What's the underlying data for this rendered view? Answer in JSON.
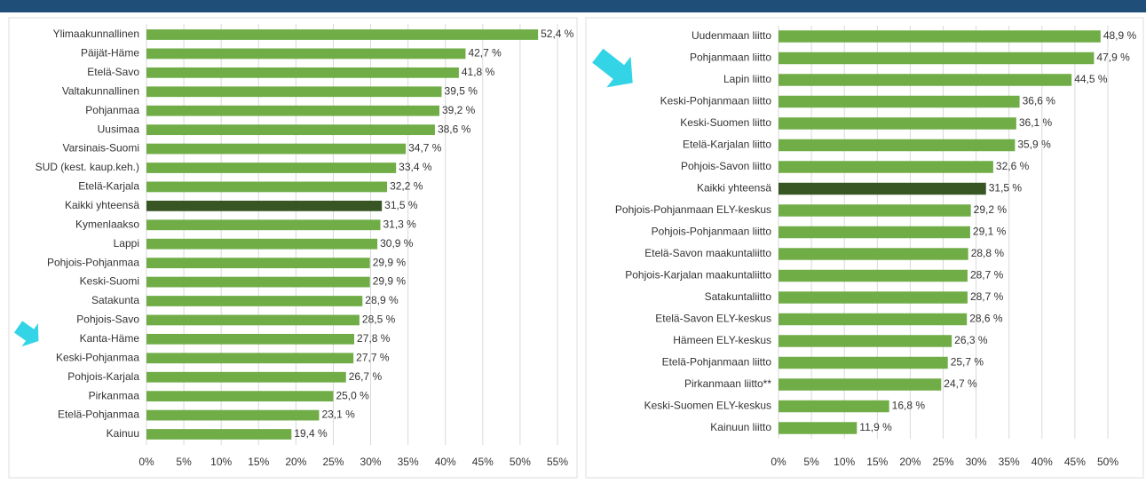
{
  "chart_data": [
    {
      "type": "bar",
      "orientation": "horizontal",
      "categories": [
        "Ylimaakunnallinen",
        "Päijät-Häme",
        "Etelä-Savo",
        "Valtakunnallinen",
        "Pohjanmaa",
        "Uusimaa",
        "Varsinais-Suomi",
        "SUD (kest. kaup.keh.)",
        "Etelä-Karjala",
        "Kaikki yhteensä",
        "Kymenlaakso",
        "Lappi",
        "Pohjois-Pohjanmaa",
        "Keski-Suomi",
        "Satakunta",
        "Pohjois-Savo",
        "Kanta-Häme",
        "Keski-Pohjanmaa",
        "Pohjois-Karjala",
        "Pirkanmaa",
        "Etelä-Pohjanmaa",
        "Kainuu"
      ],
      "values": [
        52.4,
        42.7,
        41.8,
        39.5,
        39.2,
        38.6,
        34.7,
        33.4,
        32.2,
        31.5,
        31.3,
        30.9,
        29.9,
        29.9,
        28.9,
        28.5,
        27.8,
        27.7,
        26.7,
        25.0,
        23.1,
        19.4
      ],
      "value_labels": [
        "52,4 %",
        "42,7 %",
        "41,8 %",
        "39,5 %",
        "39,2 %",
        "38,6 %",
        "34,7 %",
        "33,4 %",
        "32,2 %",
        "31,5 %",
        "31,3 %",
        "30,9 %",
        "29,9 %",
        "29,9 %",
        "28,9 %",
        "28,5 %",
        "27,8 %",
        "27,7 %",
        "26,7 %",
        "25,0 %",
        "23,1 %",
        "19,4 %"
      ],
      "colors": [
        "#70ad47",
        "#70ad47",
        "#70ad47",
        "#70ad47",
        "#70ad47",
        "#70ad47",
        "#70ad47",
        "#70ad47",
        "#70ad47",
        "#375623",
        "#70ad47",
        "#70ad47",
        "#70ad47",
        "#70ad47",
        "#70ad47",
        "#70ad47",
        "#70ad47",
        "#70ad47",
        "#70ad47",
        "#70ad47",
        "#70ad47",
        "#70ad47"
      ],
      "xlim": [
        0,
        55
      ],
      "xticks": [
        {
          "value": 0,
          "label": "0%"
        },
        {
          "value": 5,
          "label": "5%"
        },
        {
          "value": 10,
          "label": "10%"
        },
        {
          "value": 15,
          "label": "15%"
        },
        {
          "value": 20,
          "label": "20%"
        },
        {
          "value": 25,
          "label": "25%"
        },
        {
          "value": 30,
          "label": "30%"
        },
        {
          "value": 35,
          "label": "35%"
        },
        {
          "value": 40,
          "label": "40%"
        },
        {
          "value": 45,
          "label": "45%"
        },
        {
          "value": 50,
          "label": "50%"
        },
        {
          "value": 55,
          "label": "55%"
        }
      ],
      "grid": true
    },
    {
      "type": "bar",
      "orientation": "horizontal",
      "categories": [
        "Uudenmaan liitto",
        "Pohjanmaan liitto",
        "Lapin liitto",
        "Keski-Pohjanmaan liitto",
        "Keski-Suomen liitto",
        "Etelä-Karjalan liitto",
        "Pohjois-Savon liitto",
        "Kaikki yhteensä",
        "Pohjois-Pohjanmaan ELY-keskus",
        "Pohjois-Pohjanmaan liitto",
        "Etelä-Savon maakuntaliitto",
        "Pohjois-Karjalan maakuntaliitto",
        "Satakuntaliitto",
        "Etelä-Savon ELY-keskus",
        "Hämeen ELY-keskus",
        "Etelä-Pohjanmaan liitto",
        "Pirkanmaan liitto**",
        "Keski-Suomen ELY-keskus",
        "Kainuun liitto"
      ],
      "values": [
        48.9,
        47.9,
        44.5,
        36.6,
        36.1,
        35.9,
        32.6,
        31.5,
        29.2,
        29.1,
        28.8,
        28.7,
        28.7,
        28.6,
        26.3,
        25.7,
        24.7,
        16.8,
        11.9
      ],
      "value_labels": [
        "48,9 %",
        "47,9 %",
        "44,5 %",
        "36,6 %",
        "36,1 %",
        "35,9 %",
        "32,6 %",
        "31,5 %",
        "29,2 %",
        "29,1 %",
        "28,8 %",
        "28,7 %",
        "28,7 %",
        "28,6 %",
        "26,3 %",
        "25,7 %",
        "24,7 %",
        "16,8 %",
        "11,9 %"
      ],
      "colors": [
        "#70ad47",
        "#70ad47",
        "#70ad47",
        "#70ad47",
        "#70ad47",
        "#70ad47",
        "#70ad47",
        "#375623",
        "#70ad47",
        "#70ad47",
        "#70ad47",
        "#70ad47",
        "#70ad47",
        "#70ad47",
        "#70ad47",
        "#70ad47",
        "#70ad47",
        "#70ad47",
        "#70ad47"
      ],
      "xlim": [
        0,
        50
      ],
      "xticks": [
        {
          "value": 0,
          "label": "0%"
        },
        {
          "value": 5,
          "label": "5%"
        },
        {
          "value": 10,
          "label": "10%"
        },
        {
          "value": 15,
          "label": "15%"
        },
        {
          "value": 20,
          "label": "20%"
        },
        {
          "value": 25,
          "label": "25%"
        },
        {
          "value": 30,
          "label": "30%"
        },
        {
          "value": 35,
          "label": "35%"
        },
        {
          "value": 40,
          "label": "40%"
        },
        {
          "value": 45,
          "label": "45%"
        },
        {
          "value": 50,
          "label": "50%"
        }
      ],
      "grid": true
    }
  ]
}
